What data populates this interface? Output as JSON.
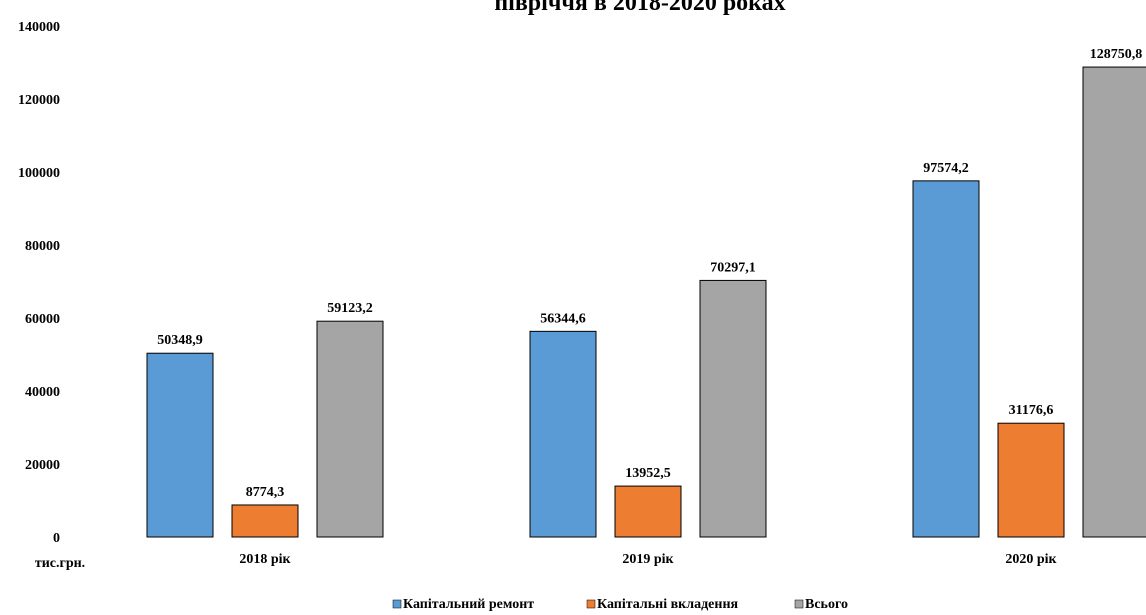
{
  "chart_data": {
    "type": "bar",
    "title": "півріччя в 2018-2020 роках",
    "categories": [
      "2018 рік",
      "2019 рік",
      "2020 рік"
    ],
    "series": [
      {
        "name": "Капітальний ремонт",
        "values": [
          50348.9,
          56344.6,
          97574.2
        ],
        "labels": [
          "50348,9",
          "56344,6",
          "97574,2"
        ],
        "color": "#5b9bd5"
      },
      {
        "name": "Капітальні вкладення",
        "values": [
          8774.3,
          13952.5,
          31176.6
        ],
        "labels": [
          "8774,3",
          "13952,5",
          "31176,6"
        ],
        "color": "#ed7d31"
      },
      {
        "name": "Всього",
        "values": [
          59123.2,
          70297.1,
          128750.8
        ],
        "labels": [
          "59123,2",
          "70297,1",
          "128750,8"
        ],
        "color": "#a5a5a5"
      }
    ],
    "ylim": [
      0,
      140000
    ],
    "yticks": [
      "0",
      "20000",
      "40000",
      "60000",
      "80000",
      "100000",
      "120000",
      "140000"
    ],
    "unit_label": "тис.грн.",
    "grid": false,
    "legend": "bottom"
  }
}
